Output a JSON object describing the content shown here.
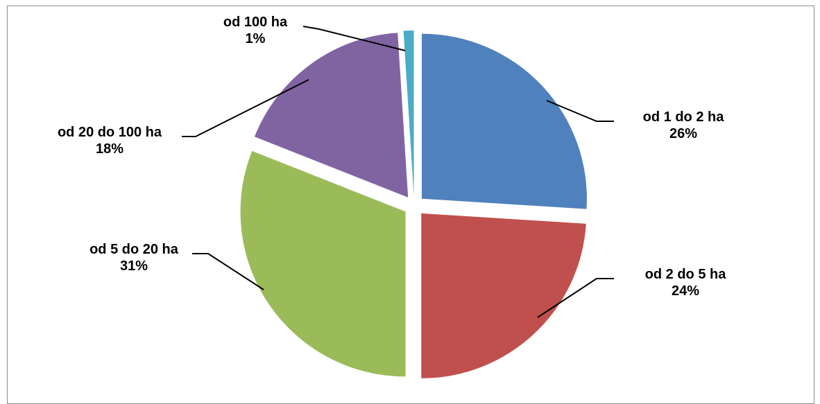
{
  "chart_data": {
    "type": "pie",
    "exploded": true,
    "start_angle_deg": 0,
    "direction": "clockwise",
    "legend": "none",
    "slices": [
      {
        "name": "od 1 do 2 ha",
        "value": 26,
        "label": "26%",
        "color": "#4F81BD"
      },
      {
        "name": "od 2 do 5 ha",
        "value": 24,
        "label": "24%",
        "color": "#C0504D"
      },
      {
        "name": "od 5 do 20 ha",
        "value": 31,
        "label": "31%",
        "color": "#9BBB59"
      },
      {
        "name": "od 20 do 100 ha",
        "value": 18,
        "label": "18%",
        "color": "#8064A2"
      },
      {
        "name": "od 100 ha",
        "value": 1,
        "label": "1%",
        "color": "#4BACC6"
      }
    ]
  }
}
